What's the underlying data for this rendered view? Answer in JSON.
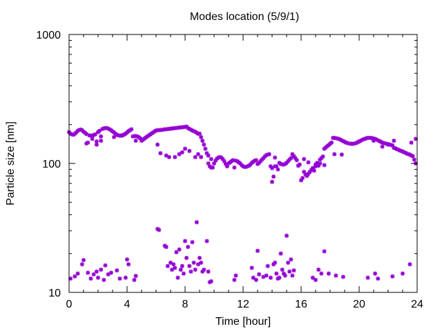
{
  "chart_data": {
    "type": "scatter",
    "title": "Modes location (5/9/1)",
    "xlabel": "Time [hour]",
    "ylabel": "Particle size [nm]",
    "xlim": [
      0,
      24
    ],
    "ylim": [
      10,
      1000
    ],
    "yscale": "log",
    "x_ticks": [
      0,
      4,
      8,
      12,
      16,
      20,
      24
    ],
    "x_tick_labels": [
      "0",
      "4",
      "8",
      "12",
      "16",
      "20",
      "24"
    ],
    "y_ticks": [
      10,
      100,
      1000
    ],
    "y_tick_labels": [
      "10",
      "100",
      "1000"
    ],
    "grid": false,
    "legend": "none",
    "marker_color": "#9400d3",
    "series": [
      {
        "x": [
          0.0,
          0.1,
          0.2,
          0.3,
          0.4,
          0.5,
          0.6,
          0.7,
          0.8,
          0.9,
          1.0,
          1.1,
          1.2,
          1.3,
          1.4,
          1.5,
          1.6,
          1.7,
          1.8,
          1.9,
          2.0,
          2.1,
          2.2,
          2.3,
          2.4,
          2.5,
          2.6,
          2.7,
          2.8,
          2.9,
          3.0,
          3.1,
          3.2,
          3.3,
          3.4,
          3.5,
          3.6,
          3.7,
          3.8,
          3.9,
          4.0,
          4.1,
          4.2,
          4.3,
          4.4,
          4.5,
          4.6,
          4.7,
          4.8,
          4.9,
          5.0,
          5.1,
          5.2,
          5.3,
          5.4,
          5.5,
          5.6,
          5.7,
          5.8,
          5.9,
          6.0,
          6.1,
          6.2,
          6.3,
          6.4,
          6.5,
          6.6,
          6.7,
          6.8,
          6.9,
          7.0,
          7.1,
          7.2,
          7.3,
          7.4,
          7.5,
          7.6,
          7.7,
          7.8,
          7.9,
          8.0,
          8.1,
          8.2,
          8.3,
          8.4,
          8.5,
          8.6,
          8.7,
          8.8,
          8.9,
          9.0,
          9.1,
          9.2,
          9.3,
          9.4,
          9.5,
          9.6,
          9.7,
          9.8,
          9.9,
          10.0,
          10.1,
          10.2,
          10.3,
          10.4,
          10.5,
          10.6,
          10.7,
          10.8,
          10.9,
          11.0,
          11.1,
          11.2,
          11.3,
          11.4,
          11.5,
          11.6,
          11.7,
          11.8,
          11.9,
          12.0,
          12.1,
          12.2,
          12.3,
          12.4,
          12.5,
          12.6,
          12.7,
          12.8,
          12.9,
          13.0,
          13.1,
          13.2,
          13.3,
          13.4,
          13.5,
          13.6,
          13.7,
          13.8,
          13.9,
          14.0,
          14.1,
          14.2,
          14.3,
          14.4,
          14.5,
          14.6,
          14.7,
          14.8,
          14.9,
          15.0,
          15.1,
          15.2,
          15.3,
          15.4,
          15.5,
          15.6,
          15.7,
          15.8,
          15.9,
          16.0,
          16.1,
          16.2,
          16.3,
          16.4,
          16.5,
          16.6,
          16.7,
          16.8,
          16.9,
          17.0,
          17.1,
          17.2,
          17.3,
          17.4,
          17.5,
          17.6,
          17.7,
          17.8,
          17.9,
          18.0,
          18.1,
          18.2,
          18.3,
          18.4,
          18.5,
          18.6,
          18.7,
          18.8,
          18.9,
          19.0,
          19.1,
          19.2,
          19.3,
          19.4,
          19.5,
          19.6,
          19.7,
          19.8,
          19.9,
          20.0,
          20.1,
          20.2,
          20.3,
          20.4,
          20.5,
          20.6,
          20.7,
          20.8,
          20.9,
          21.0,
          21.1,
          21.2,
          21.3,
          21.4,
          21.5,
          21.6,
          21.7,
          21.8,
          21.9,
          22.0,
          22.1,
          22.2,
          22.3,
          22.4,
          22.5,
          22.6,
          22.7,
          22.8,
          22.9,
          23.0,
          23.1,
          23.2,
          23.3,
          23.4,
          23.5,
          23.6,
          23.7,
          23.8,
          23.9,
          1.2,
          1.6,
          1.9,
          2.2,
          3.1,
          3.6,
          3.8,
          4.6,
          6.1,
          6.3,
          6.7,
          6.9,
          7.3,
          7.6,
          7.8,
          8.0,
          8.3,
          8.7,
          8.9,
          9.1,
          9.6,
          9.8,
          14.0,
          14.2,
          16.2,
          16.5,
          16.8,
          17.0,
          17.3,
          17.6,
          18.3,
          18.8,
          21.0,
          21.6,
          22.0,
          22.4,
          23.6,
          23.9,
          0.1,
          0.4,
          0.6,
          0.9,
          1.0,
          1.3,
          1.5,
          1.7,
          1.9,
          2.0,
          2.2,
          2.4,
          2.5,
          2.7,
          2.9,
          3.3,
          3.5,
          3.9,
          4.0,
          4.1,
          4.5,
          4.6,
          6.1,
          6.2,
          6.6,
          6.7,
          6.8,
          7.0,
          7.1,
          7.2,
          7.3,
          7.4,
          7.5,
          7.6,
          7.7,
          7.8,
          7.9,
          8.0,
          8.1,
          8.2,
          8.3,
          8.4,
          8.5,
          8.6,
          8.7,
          8.8,
          8.9,
          9.0,
          9.1,
          9.2,
          9.3,
          9.5,
          9.6,
          9.7,
          9.8,
          11.4,
          11.5,
          12.6,
          12.7,
          12.9,
          13.0,
          13.1,
          13.4,
          13.6,
          13.7,
          13.9,
          14.1,
          14.2,
          14.3,
          14.4,
          14.5,
          14.6,
          14.7,
          14.8,
          14.9,
          15.0,
          15.1,
          15.2,
          15.3,
          15.4,
          15.5,
          16.8,
          17.0,
          17.2,
          17.4,
          17.6,
          17.9,
          18.4,
          18.9,
          20.6,
          21.1,
          21.3,
          22.3,
          23.0,
          23.5
        ]
      }
    ]
  }
}
